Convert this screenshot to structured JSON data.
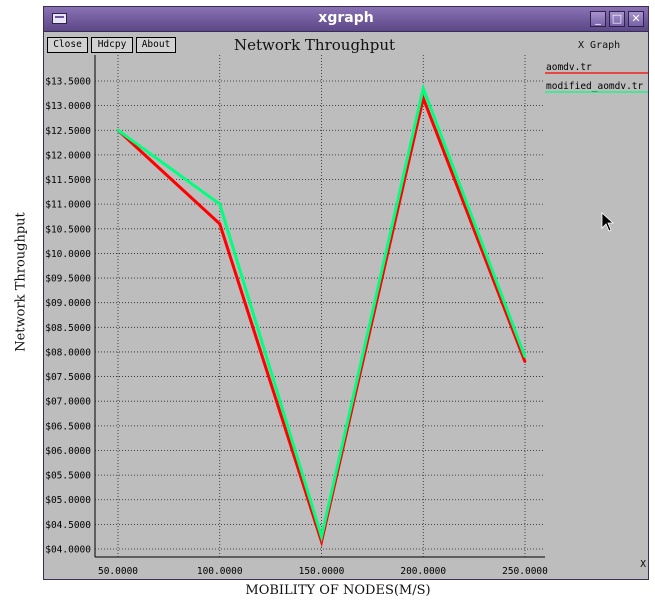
{
  "window": {
    "title": "xgraph",
    "controls": {
      "minimize": "_",
      "maximize": "□",
      "close": "✕"
    }
  },
  "toolbar": {
    "close_label": "Close",
    "hdcpy_label": "Hdcpy",
    "about_label": "About"
  },
  "graph_tag": "X Graph",
  "x_corner_label": "X",
  "ylabel_outer": "Network Throughput",
  "xlabel_outer": "MOBILITY OF NODES(M/S)",
  "colors": {
    "aomdv": "#ff0000",
    "modified": "#00ff7f",
    "background": "#bdbdbd"
  },
  "chart_data": {
    "type": "line",
    "title": "Network Throughput",
    "xlabel": "MOBILITY OF NODES(M/S)",
    "ylabel": "Network Throughput",
    "x": [
      50,
      100,
      150,
      200,
      250
    ],
    "x_ticks": [
      50,
      100,
      150,
      200,
      250
    ],
    "x_tick_labels": [
      "50.0000",
      "100.0000",
      "150.0000",
      "200.0000",
      "250.0000"
    ],
    "xlim": [
      50,
      250
    ],
    "y_ticks": [
      4.0,
      4.5,
      5.0,
      5.5,
      6.0,
      6.5,
      7.0,
      7.5,
      8.0,
      8.5,
      9.0,
      9.5,
      10.0,
      10.5,
      11.0,
      11.5,
      12.0,
      12.5,
      13.0,
      13.5
    ],
    "y_tick_labels": [
      "$04.0000",
      "$04.5000",
      "$05.0000",
      "$05.5000",
      "$06.0000",
      "$06.5000",
      "$07.0000",
      "$07.5000",
      "$08.0000",
      "$08.5000",
      "$09.0000",
      "$09.5000",
      "$10.0000",
      "$10.5000",
      "$11.0000",
      "$11.5000",
      "$12.0000",
      "$12.5000",
      "$13.0000",
      "$13.5000"
    ],
    "ylim": [
      4.0,
      13.5
    ],
    "grid": true,
    "legend_position": "top-right",
    "series": [
      {
        "name": "aomdv.tr",
        "values": [
          12.5,
          10.6,
          4.15,
          13.15,
          7.8
        ]
      },
      {
        "name": "modified_aomdv.tr",
        "values": [
          12.5,
          11.0,
          4.25,
          13.35,
          7.9
        ]
      }
    ]
  }
}
